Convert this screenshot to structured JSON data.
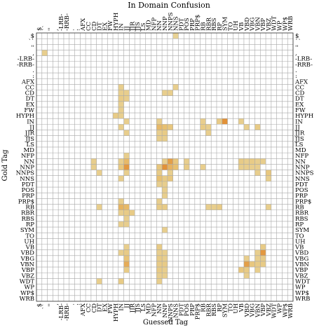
{
  "chart_data": {
    "type": "heatmap",
    "title": "In Domain Confusion",
    "xlabel": "Guessed Tag",
    "ylabel": "Gold Tag",
    "grid": true,
    "tags": [
      "$",
      "``",
      "''",
      ",",
      "-LRB-",
      "-RRB-",
      ".",
      ":",
      "AFX",
      "CC",
      "CD",
      "DT",
      "EX",
      "FW",
      "HYPH",
      "IN",
      "JJ",
      "JJR",
      "JJS",
      "LS",
      "MD",
      "NFP",
      "NN",
      "NNP",
      "NNPS",
      "NNS",
      "PDT",
      "POS",
      "PRP",
      "PRP$",
      "RB",
      "RBR",
      "RBS",
      "RP",
      "SYM",
      "TO",
      "UH",
      "VB",
      "VBD",
      "VBG",
      "VBN",
      "VBP",
      "VBZ",
      "WDT",
      "WP",
      "WP$",
      "WRB"
    ],
    "cell_intensity_range": [
      0,
      1
    ],
    "cells": [
      {
        "gold": "$",
        "guess": "NNS",
        "intensity": 0.25
      },
      {
        "gold": ",",
        "guess": "``",
        "intensity": 0.3
      },
      {
        "gold": "CC",
        "guess": "IN",
        "intensity": 0.3
      },
      {
        "gold": "CC",
        "guess": "NNS",
        "intensity": 0.3
      },
      {
        "gold": "CD",
        "guess": "IN",
        "intensity": 0.3
      },
      {
        "gold": "CD",
        "guess": "JJ",
        "intensity": 0.3
      },
      {
        "gold": "CD",
        "guess": "NNP",
        "intensity": 0.3
      },
      {
        "gold": "CD",
        "guess": "NNPS",
        "intensity": 0.3
      },
      {
        "gold": "DT",
        "guess": "IN",
        "intensity": 0.35
      },
      {
        "gold": "DT",
        "guess": "JJ",
        "intensity": 0.3
      },
      {
        "gold": "EX",
        "guess": "IN",
        "intensity": 0.3
      },
      {
        "gold": "FW",
        "guess": "IN",
        "intensity": 0.3
      },
      {
        "gold": "HYPH",
        "guess": "HYPH",
        "intensity": 0.35
      },
      {
        "gold": "HYPH",
        "guess": "IN",
        "intensity": 0.3
      },
      {
        "gold": "IN",
        "guess": "JJ",
        "intensity": 0.3
      },
      {
        "gold": "IN",
        "guess": "NN",
        "intensity": 0.3
      },
      {
        "gold": "IN",
        "guess": "RB",
        "intensity": 0.3
      },
      {
        "gold": "IN",
        "guess": "RP",
        "intensity": 0.35
      },
      {
        "gold": "IN",
        "guess": "SYM",
        "intensity": 0.85
      },
      {
        "gold": "IN",
        "guess": "VB",
        "intensity": 0.3
      },
      {
        "gold": "JJ",
        "guess": "IN",
        "intensity": 0.3
      },
      {
        "gold": "JJ",
        "guess": "NN",
        "intensity": 0.55
      },
      {
        "gold": "JJ",
        "guess": "NNP",
        "intensity": 0.5
      },
      {
        "gold": "JJ",
        "guess": "NNPS",
        "intensity": 0.4
      },
      {
        "gold": "JJ",
        "guess": "RB",
        "intensity": 0.35
      },
      {
        "gold": "JJ",
        "guess": "RBR",
        "intensity": 0.3
      },
      {
        "gold": "JJ",
        "guess": "VBD",
        "intensity": 0.3
      },
      {
        "gold": "JJ",
        "guess": "VBN",
        "intensity": 0.35
      },
      {
        "gold": "JJR",
        "guess": "JJ",
        "intensity": 0.3
      },
      {
        "gold": "JJR",
        "guess": "NN",
        "intensity": 0.3
      },
      {
        "gold": "JJR",
        "guess": "NNP",
        "intensity": 0.35
      },
      {
        "gold": "JJR",
        "guess": "RBR",
        "intensity": 0.3
      },
      {
        "gold": "JJS",
        "guess": "NN",
        "intensity": 0.3
      },
      {
        "gold": "JJS",
        "guess": "NNP",
        "intensity": 0.3
      },
      {
        "gold": "NFP",
        "guess": "JJ",
        "intensity": 0.3
      },
      {
        "gold": "NN",
        "guess": "CD",
        "intensity": 0.3
      },
      {
        "gold": "NN",
        "guess": "IN",
        "intensity": 0.3
      },
      {
        "gold": "NN",
        "guess": "JJ",
        "intensity": 0.55
      },
      {
        "gold": "NN",
        "guess": "NNP",
        "intensity": 0.3
      },
      {
        "gold": "NN",
        "guess": "NNPS",
        "intensity": 0.75
      },
      {
        "gold": "NN",
        "guess": "NNS",
        "intensity": 0.4
      },
      {
        "gold": "NN",
        "guess": "POS",
        "intensity": 0.3
      },
      {
        "gold": "NN",
        "guess": "VB",
        "intensity": 0.35
      },
      {
        "gold": "NN",
        "guess": "VBD",
        "intensity": 0.3
      },
      {
        "gold": "NN",
        "guess": "VBG",
        "intensity": 0.35
      },
      {
        "gold": "NN",
        "guess": "VBN",
        "intensity": 0.3
      },
      {
        "gold": "NN",
        "guess": "VBP",
        "intensity": 0.3
      },
      {
        "gold": "NNP",
        "guess": "CD",
        "intensity": 0.3
      },
      {
        "gold": "NNP",
        "guess": "IN",
        "intensity": 0.4
      },
      {
        "gold": "NNP",
        "guess": "JJ",
        "intensity": 0.8
      },
      {
        "gold": "NNP",
        "guess": "NN",
        "intensity": 0.4
      },
      {
        "gold": "NNP",
        "guess": "NNP",
        "intensity": 0.85
      },
      {
        "gold": "NNP",
        "guess": "NNPS",
        "intensity": 0.6
      },
      {
        "gold": "NNP",
        "guess": "NNS",
        "intensity": 0.5
      },
      {
        "gold": "NNP",
        "guess": "POS",
        "intensity": 0.35
      },
      {
        "gold": "NNP",
        "guess": "RB",
        "intensity": 0.3
      },
      {
        "gold": "NNP",
        "guess": "VB",
        "intensity": 0.3
      },
      {
        "gold": "NNP",
        "guess": "VBD",
        "intensity": 0.3
      },
      {
        "gold": "NNP",
        "guess": "VBG",
        "intensity": 0.3
      },
      {
        "gold": "NNP",
        "guess": "VBN",
        "intensity": 0.3
      },
      {
        "gold": "NNPS",
        "guess": "DT",
        "intensity": 0.3
      },
      {
        "gold": "NNPS",
        "guess": "JJ",
        "intensity": 0.3
      },
      {
        "gold": "NNPS",
        "guess": "NN",
        "intensity": 0.35
      },
      {
        "gold": "NNPS",
        "guess": "NNPS",
        "intensity": 0.3
      },
      {
        "gold": "NNPS",
        "guess": "VBN",
        "intensity": 0.3
      },
      {
        "gold": "NNPS",
        "guess": "VBZ",
        "intensity": 0.4
      },
      {
        "gold": "NNS",
        "guess": "IN",
        "intensity": 0.3
      },
      {
        "gold": "NNS",
        "guess": "NN",
        "intensity": 0.5
      },
      {
        "gold": "NNS",
        "guess": "NNP",
        "intensity": 0.35
      },
      {
        "gold": "NNS",
        "guess": "NNPS",
        "intensity": 0.4
      },
      {
        "gold": "NNS",
        "guess": "VBZ",
        "intensity": 0.3
      },
      {
        "gold": "PDT",
        "guess": "NN",
        "intensity": 0.3
      },
      {
        "gold": "PDT",
        "guess": "NNP",
        "intensity": 0.3
      },
      {
        "gold": "POS",
        "guess": "NNP",
        "intensity": 0.3
      },
      {
        "gold": "PRP",
        "guess": "NNP",
        "intensity": 0.3
      },
      {
        "gold": "PRP$",
        "guess": "IN",
        "intensity": 0.3
      },
      {
        "gold": "PRP$",
        "guess": "NN",
        "intensity": 0.3
      },
      {
        "gold": "RB",
        "guess": "DT",
        "intensity": 0.3
      },
      {
        "gold": "RB",
        "guess": "IN",
        "intensity": 0.6
      },
      {
        "gold": "RB",
        "guess": "JJ",
        "intensity": 0.55
      },
      {
        "gold": "RB",
        "guess": "NN",
        "intensity": 0.35
      },
      {
        "gold": "RB",
        "guess": "NNP",
        "intensity": 0.35
      },
      {
        "gold": "RB",
        "guess": "RBR",
        "intensity": 0.3
      },
      {
        "gold": "RB",
        "guess": "RP",
        "intensity": 0.35
      },
      {
        "gold": "RB",
        "guess": "RBS",
        "intensity": 0.3
      },
      {
        "gold": "RB",
        "guess": "VBZ",
        "intensity": 0.3
      },
      {
        "gold": "RBR",
        "guess": "IN",
        "intensity": 0.3
      },
      {
        "gold": "RBR",
        "guess": "JJ",
        "intensity": 0.35
      },
      {
        "gold": "RBR",
        "guess": "JJR",
        "intensity": 0.35
      },
      {
        "gold": "RBS",
        "guess": "JJ",
        "intensity": 0.3
      },
      {
        "gold": "RP",
        "guess": "IN",
        "intensity": 0.3
      },
      {
        "gold": "RP",
        "guess": "JJ",
        "intensity": 0.3
      },
      {
        "gold": "SYM",
        "guess": "NNP",
        "intensity": 0.3
      },
      {
        "gold": "VB",
        "guess": "NN",
        "intensity": 0.35
      },
      {
        "gold": "VB",
        "guess": "VBP",
        "intensity": 0.35
      },
      {
        "gold": "VB",
        "guess": "JJ",
        "intensity": 0.3
      },
      {
        "gold": "VBD",
        "guess": "IN",
        "intensity": 0.3
      },
      {
        "gold": "VBD",
        "guess": "JJ",
        "intensity": 0.35
      },
      {
        "gold": "VBD",
        "guess": "NN",
        "intensity": 0.3
      },
      {
        "gold": "VBD",
        "guess": "NNP",
        "intensity": 0.3
      },
      {
        "gold": "VBD",
        "guess": "VBN",
        "intensity": 0.3
      },
      {
        "gold": "VBD",
        "guess": "VBP",
        "intensity": 0.8
      },
      {
        "gold": "VBG",
        "guess": "JJ",
        "intensity": 0.45
      },
      {
        "gold": "VBG",
        "guess": "NN",
        "intensity": 0.35
      },
      {
        "gold": "VBG",
        "guess": "NNP",
        "intensity": 0.3
      },
      {
        "gold": "VBG",
        "guess": "VBD",
        "intensity": 0.3
      },
      {
        "gold": "VBG",
        "guess": "VBN",
        "intensity": 0.3
      },
      {
        "gold": "VBG",
        "guess": "VBP",
        "intensity": 0.35
      },
      {
        "gold": "VBN",
        "guess": "JJ",
        "intensity": 0.65
      },
      {
        "gold": "VBN",
        "guess": "NN",
        "intensity": 0.35
      },
      {
        "gold": "VBN",
        "guess": "NNP",
        "intensity": 0.35
      },
      {
        "gold": "VBN",
        "guess": "VBD",
        "intensity": 0.75
      },
      {
        "gold": "VBN",
        "guess": "VBG",
        "intensity": 0.4
      },
      {
        "gold": "VBN",
        "guess": "VBN",
        "intensity": 0.35
      },
      {
        "gold": "VBN",
        "guess": "VBP",
        "intensity": 0.35
      },
      {
        "gold": "VBP",
        "guess": "JJ",
        "intensity": 0.35
      },
      {
        "gold": "VBP",
        "guess": "NN",
        "intensity": 0.35
      },
      {
        "gold": "VBP",
        "guess": "NNP",
        "intensity": 0.3
      },
      {
        "gold": "VBP",
        "guess": "VB",
        "intensity": 0.4
      },
      {
        "gold": "VBP",
        "guess": "VBD",
        "intensity": 0.35
      },
      {
        "gold": "VBP",
        "guess": "VBN",
        "intensity": 0.3
      },
      {
        "gold": "VBZ",
        "guess": "NN",
        "intensity": 0.3
      },
      {
        "gold": "VBZ",
        "guess": "NNP",
        "intensity": 0.3
      },
      {
        "gold": "VBZ",
        "guess": "VBD",
        "intensity": 0.3
      },
      {
        "gold": "WDT",
        "guess": "DT",
        "intensity": 0.3
      },
      {
        "gold": "WDT",
        "guess": "IN",
        "intensity": 0.35
      },
      {
        "gold": "WDT",
        "guess": "NN",
        "intensity": 0.3
      }
    ],
    "colors": {
      "low": "#e8e3b8",
      "mid": "#e8c070",
      "high": "#e07d20",
      "grid": "#a8a8a8"
    }
  }
}
